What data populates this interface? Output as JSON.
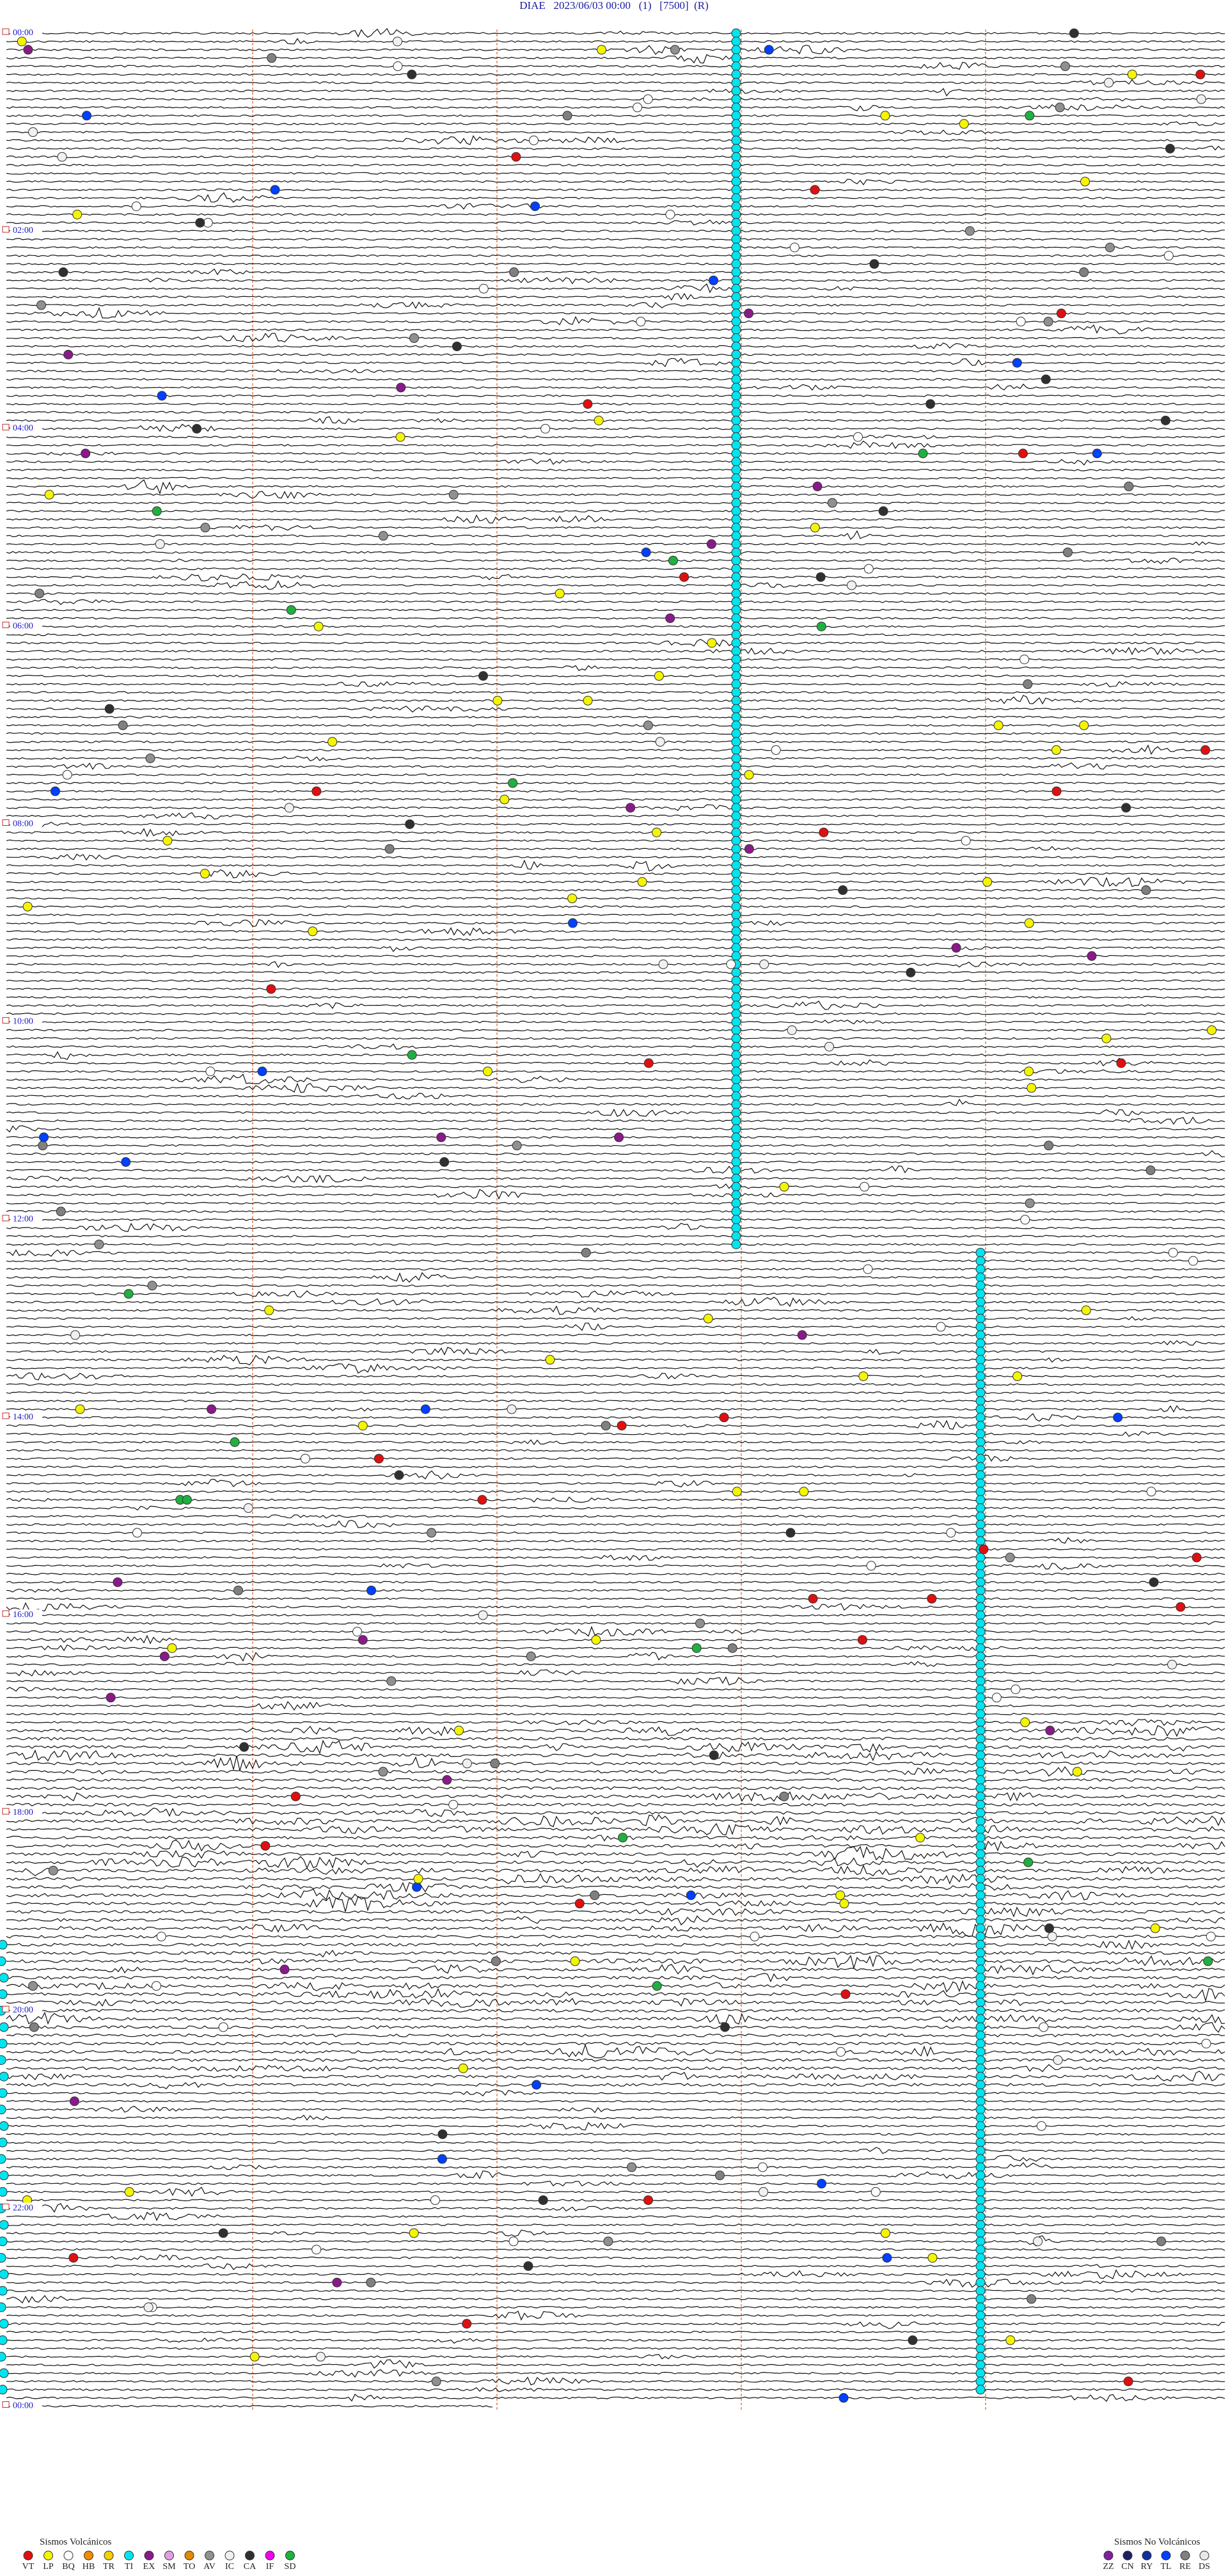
{
  "header": {
    "title": "DIAE   2023/06/03 00:00   (1)   [7500]  (R)"
  },
  "time_labels": [
    "00:00",
    "02:00",
    "04:00",
    "06:00",
    "08:00",
    "10:00",
    "12:00",
    "14:00",
    "16:00",
    "18:00",
    "20:00",
    "22:00",
    "00:00"
  ],
  "legend_volcanic": {
    "title": "Sismos Volcánicos",
    "items": [
      {
        "code": "VT",
        "color": "#e01010"
      },
      {
        "code": "LP",
        "color": "#f5f500"
      },
      {
        "code": "BQ",
        "color": "#ffffff"
      },
      {
        "code": "HB",
        "color": "#f08c00"
      },
      {
        "code": "TR",
        "color": "#f5d000"
      },
      {
        "code": "TI",
        "color": "#00e5f0"
      },
      {
        "code": "EX",
        "color": "#8a1a8a"
      },
      {
        "code": "SM",
        "color": "#e0a0e0"
      },
      {
        "code": "TO",
        "color": "#e08a00"
      },
      {
        "code": "AV",
        "color": "#909090"
      },
      {
        "code": "IC",
        "color": "#f0f0f0"
      },
      {
        "code": "CA",
        "color": "#303030"
      },
      {
        "code": "IF",
        "color": "#f000f0"
      },
      {
        "code": "SD",
        "color": "#20b040"
      }
    ]
  },
  "legend_non_volcanic": {
    "title": "Sismos No Volcánicos",
    "items": [
      {
        "code": "ZZ",
        "color": "#8020a0"
      },
      {
        "code": "CN",
        "color": "#202060"
      },
      {
        "code": "RY",
        "color": "#1030a0"
      },
      {
        "code": "TL",
        "color": "#0040ff"
      },
      {
        "code": "RE",
        "color": "#808080"
      },
      {
        "code": "DS",
        "color": "#e8e8e8"
      }
    ]
  }
}
